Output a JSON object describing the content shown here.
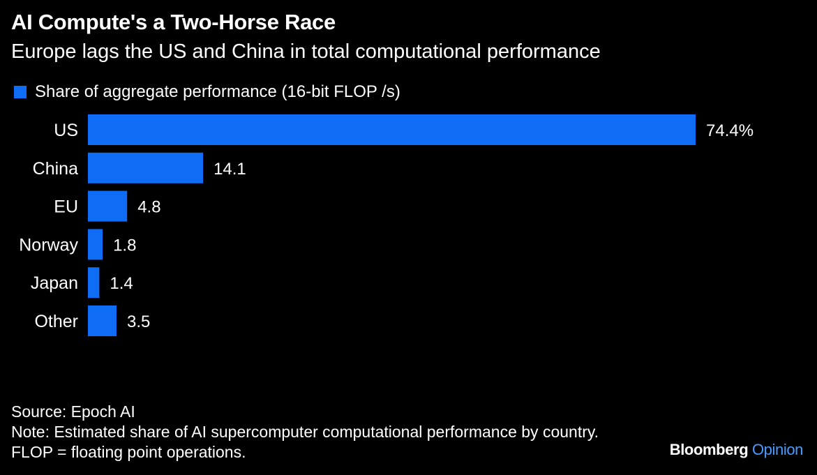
{
  "title": "AI Compute's a Two-Horse Race",
  "subtitle": "Europe lags the US and China in total computational performance",
  "colors": {
    "background": "#000000",
    "bar": "#0f6cf5",
    "text": "#ffffff",
    "brand_accent": "#4a9bff"
  },
  "chart_data": {
    "type": "bar",
    "orientation": "horizontal",
    "categories": [
      "US",
      "China",
      "EU",
      "Norway",
      "Japan",
      "Other"
    ],
    "series": [
      {
        "name": "Share of aggregate performance (16-bit FLOP /s)",
        "values": [
          74.4,
          14.1,
          4.8,
          1.8,
          1.4,
          3.5
        ]
      }
    ],
    "value_labels": [
      "74.4%",
      "14.1",
      "4.8",
      "1.8",
      "1.4",
      "3.5"
    ],
    "legend_position": "top-left",
    "grid": false
  },
  "footer": {
    "source": "Source: Epoch AI",
    "note": "Note: Estimated share of AI supercomputer computational performance by country. FLOP = floating point operations.",
    "brand_primary": "Bloomberg",
    "brand_secondary": "Opinion"
  }
}
